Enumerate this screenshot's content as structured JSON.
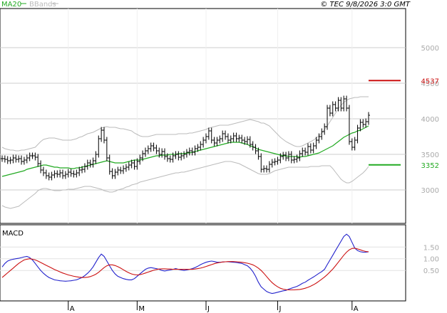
{
  "header": {
    "legend_ma": "MA20",
    "legend_bb": "BBands",
    "copyright": "© TEC 9/8/2026 3:0 GMT"
  },
  "colors": {
    "bars": "#000000",
    "ma": "#22aa22",
    "bbands": "#bbbbbb",
    "macd": "#2222cc",
    "signal": "#cc1111",
    "resistance": "#cc1111",
    "support": "#22aa22",
    "grid": "#cccccc"
  },
  "chart_data": [
    {
      "type": "ohlc",
      "title": "",
      "x_ticks": [
        "A",
        "M",
        "J",
        "J",
        "A"
      ],
      "y_ticks": [
        "3000",
        "3500",
        "4000",
        "4500",
        "5000"
      ],
      "ylim": [
        2530,
        5550
      ],
      "grid": true,
      "levels": [
        {
          "name": "resistance",
          "value": 4537,
          "label": "4537"
        },
        {
          "name": "support",
          "value": 3352,
          "label": "3352"
        }
      ],
      "closes": [
        3440,
        3430,
        3410,
        3420,
        3450,
        3430,
        3440,
        3400,
        3420,
        3450,
        3480,
        3480,
        3460,
        3370,
        3280,
        3240,
        3200,
        3180,
        3210,
        3230,
        3220,
        3240,
        3200,
        3220,
        3250,
        3230,
        3220,
        3240,
        3280,
        3290,
        3330,
        3380,
        3360,
        3410,
        3500,
        3720,
        3840,
        3700,
        3450,
        3260,
        3200,
        3250,
        3280,
        3270,
        3300,
        3320,
        3350,
        3380,
        3330,
        3400,
        3450,
        3510,
        3550,
        3580,
        3620,
        3590,
        3550,
        3500,
        3540,
        3470,
        3440,
        3430,
        3480,
        3500,
        3460,
        3480,
        3500,
        3530,
        3550,
        3530,
        3580,
        3600,
        3640,
        3700,
        3750,
        3830,
        3700,
        3660,
        3700,
        3720,
        3790,
        3750,
        3700,
        3720,
        3760,
        3720,
        3730,
        3700,
        3680,
        3710,
        3640,
        3600,
        3550,
        3470,
        3290,
        3300,
        3290,
        3360,
        3390,
        3400,
        3420,
        3470,
        3490,
        3450,
        3500,
        3420,
        3430,
        3450,
        3510,
        3550,
        3530,
        3610,
        3560,
        3620,
        3700,
        3750,
        3820,
        3890,
        4150,
        4080,
        4200,
        4150,
        4260,
        4150,
        4280,
        4150,
        3680,
        3600,
        3700,
        3870,
        3950,
        3920,
        3960,
        4050
      ],
      "bbands_upper": [
        3600,
        3580,
        3570,
        3560,
        3560,
        3550,
        3550,
        3560,
        3560,
        3570,
        3580,
        3590,
        3600,
        3640,
        3680,
        3710,
        3720,
        3730,
        3730,
        3730,
        3720,
        3710,
        3700,
        3700,
        3700,
        3700,
        3710,
        3720,
        3740,
        3750,
        3770,
        3790,
        3800,
        3810,
        3830,
        3850,
        3870,
        3880,
        3890,
        3880,
        3880,
        3880,
        3870,
        3860,
        3860,
        3850,
        3840,
        3830,
        3800,
        3780,
        3760,
        3750,
        3750,
        3750,
        3760,
        3770,
        3780,
        3780,
        3780,
        3780,
        3780,
        3780,
        3780,
        3780,
        3790,
        3790,
        3790,
        3790,
        3800,
        3800,
        3810,
        3820,
        3830,
        3840,
        3850,
        3870,
        3880,
        3890,
        3900,
        3910,
        3910,
        3910,
        3910,
        3920,
        3930,
        3940,
        3950,
        3960,
        3970,
        3980,
        3990,
        3980,
        3970,
        3960,
        3940,
        3940,
        3920,
        3900,
        3860,
        3820,
        3780,
        3740,
        3710,
        3680,
        3660,
        3640,
        3620,
        3610,
        3610,
        3620,
        3640,
        3660,
        3680,
        3700,
        3730,
        3760,
        3800,
        3850,
        3900,
        3960,
        4020,
        4080,
        4140,
        4190,
        4230,
        4260,
        4280,
        4290,
        4300,
        4300,
        4310,
        4310,
        4310,
        4310
      ],
      "bbands_lower": [
        2780,
        2760,
        2750,
        2740,
        2750,
        2760,
        2770,
        2800,
        2830,
        2860,
        2890,
        2920,
        2950,
        2990,
        3010,
        3020,
        3020,
        3010,
        3000,
        2990,
        2990,
        2990,
        3000,
        3000,
        3010,
        3010,
        3010,
        3020,
        3030,
        3040,
        3050,
        3050,
        3050,
        3040,
        3030,
        3020,
        3010,
        2990,
        2980,
        2970,
        2970,
        2980,
        3000,
        3010,
        3020,
        3040,
        3050,
        3070,
        3080,
        3090,
        3110,
        3120,
        3130,
        3140,
        3150,
        3160,
        3170,
        3180,
        3190,
        3200,
        3210,
        3220,
        3230,
        3240,
        3240,
        3250,
        3250,
        3260,
        3270,
        3280,
        3290,
        3300,
        3310,
        3320,
        3330,
        3340,
        3350,
        3360,
        3370,
        3380,
        3390,
        3400,
        3400,
        3400,
        3390,
        3380,
        3370,
        3350,
        3330,
        3310,
        3290,
        3270,
        3250,
        3230,
        3220,
        3220,
        3220,
        3230,
        3250,
        3270,
        3280,
        3290,
        3300,
        3310,
        3320,
        3320,
        3320,
        3320,
        3320,
        3320,
        3320,
        3320,
        3330,
        3330,
        3330,
        3330,
        3340,
        3340,
        3340,
        3340,
        3300,
        3250,
        3200,
        3150,
        3120,
        3100,
        3100,
        3120,
        3150,
        3180,
        3210,
        3240,
        3280,
        3330
      ],
      "ma20": [
        3190,
        3200,
        3210,
        3220,
        3230,
        3240,
        3250,
        3260,
        3270,
        3290,
        3300,
        3310,
        3320,
        3330,
        3340,
        3350,
        3350,
        3340,
        3330,
        3320,
        3320,
        3310,
        3310,
        3310,
        3310,
        3300,
        3300,
        3310,
        3310,
        3320,
        3330,
        3340,
        3350,
        3360,
        3370,
        3380,
        3390,
        3400,
        3410,
        3400,
        3390,
        3380,
        3380,
        3380,
        3380,
        3390,
        3400,
        3410,
        3420,
        3420,
        3420,
        3430,
        3440,
        3450,
        3460,
        3470,
        3480,
        3480,
        3490,
        3490,
        3490,
        3500,
        3500,
        3500,
        3510,
        3510,
        3510,
        3520,
        3520,
        3530,
        3540,
        3550,
        3560,
        3570,
        3580,
        3590,
        3600,
        3610,
        3620,
        3630,
        3640,
        3650,
        3660,
        3670,
        3670,
        3670,
        3670,
        3660,
        3650,
        3640,
        3620,
        3610,
        3590,
        3570,
        3560,
        3550,
        3540,
        3530,
        3520,
        3510,
        3500,
        3490,
        3480,
        3480,
        3470,
        3470,
        3470,
        3470,
        3460,
        3470,
        3470,
        3480,
        3490,
        3500,
        3510,
        3520,
        3540,
        3560,
        3580,
        3600,
        3620,
        3650,
        3680,
        3710,
        3740,
        3760,
        3780,
        3800,
        3810,
        3830,
        3840,
        3860,
        3880,
        3900
      ]
    },
    {
      "type": "line",
      "title": "MACD",
      "y_ticks": [
        "0.50",
        "1.00",
        "1.50"
      ],
      "ylim": [
        -0.8,
        2.45
      ],
      "grid": true,
      "macd": [
        0.65,
        0.8,
        0.9,
        0.95,
        0.98,
        1.0,
        1.02,
        1.05,
        1.08,
        1.1,
        1.05,
        0.95,
        0.8,
        0.65,
        0.5,
        0.38,
        0.28,
        0.2,
        0.15,
        0.1,
        0.08,
        0.06,
        0.05,
        0.04,
        0.05,
        0.06,
        0.08,
        0.1,
        0.15,
        0.2,
        0.28,
        0.38,
        0.5,
        0.65,
        0.85,
        1.05,
        1.2,
        1.1,
        0.9,
        0.7,
        0.5,
        0.35,
        0.25,
        0.2,
        0.15,
        0.12,
        0.1,
        0.1,
        0.15,
        0.25,
        0.35,
        0.45,
        0.55,
        0.6,
        0.62,
        0.6,
        0.58,
        0.55,
        0.5,
        0.48,
        0.5,
        0.52,
        0.55,
        0.58,
        0.55,
        0.52,
        0.5,
        0.52,
        0.55,
        0.58,
        0.62,
        0.68,
        0.75,
        0.8,
        0.85,
        0.88,
        0.9,
        0.88,
        0.85,
        0.85,
        0.86,
        0.87,
        0.87,
        0.86,
        0.85,
        0.84,
        0.82,
        0.8,
        0.75,
        0.7,
        0.6,
        0.45,
        0.25,
        0.0,
        -0.2,
        -0.3,
        -0.4,
        -0.45,
        -0.48,
        -0.46,
        -0.43,
        -0.4,
        -0.37,
        -0.35,
        -0.3,
        -0.26,
        -0.22,
        -0.18,
        -0.12,
        -0.05,
        0.0,
        0.08,
        0.15,
        0.22,
        0.3,
        0.38,
        0.45,
        0.55,
        0.75,
        0.95,
        1.15,
        1.35,
        1.55,
        1.75,
        1.95,
        2.05,
        1.95,
        1.7,
        1.45,
        1.35,
        1.3,
        1.28,
        1.28,
        1.3
      ],
      "signal": [
        0.2,
        0.3,
        0.4,
        0.5,
        0.6,
        0.7,
        0.8,
        0.88,
        0.95,
        0.98,
        1.0,
        0.98,
        0.95,
        0.9,
        0.84,
        0.78,
        0.72,
        0.66,
        0.6,
        0.54,
        0.49,
        0.44,
        0.39,
        0.35,
        0.31,
        0.28,
        0.25,
        0.23,
        0.21,
        0.2,
        0.2,
        0.21,
        0.24,
        0.28,
        0.34,
        0.42,
        0.52,
        0.62,
        0.7,
        0.74,
        0.74,
        0.71,
        0.66,
        0.6,
        0.53,
        0.46,
        0.4,
        0.35,
        0.32,
        0.31,
        0.32,
        0.35,
        0.39,
        0.43,
        0.47,
        0.51,
        0.54,
        0.56,
        0.57,
        0.57,
        0.56,
        0.56,
        0.55,
        0.55,
        0.55,
        0.55,
        0.55,
        0.55,
        0.55,
        0.55,
        0.56,
        0.58,
        0.6,
        0.63,
        0.67,
        0.71,
        0.75,
        0.79,
        0.82,
        0.84,
        0.86,
        0.87,
        0.88,
        0.88,
        0.88,
        0.87,
        0.86,
        0.85,
        0.83,
        0.81,
        0.78,
        0.74,
        0.68,
        0.6,
        0.5,
        0.38,
        0.24,
        0.1,
        -0.02,
        -0.12,
        -0.2,
        -0.26,
        -0.3,
        -0.32,
        -0.33,
        -0.33,
        -0.33,
        -0.32,
        -0.31,
        -0.29,
        -0.26,
        -0.22,
        -0.17,
        -0.11,
        -0.04,
        0.04,
        0.13,
        0.22,
        0.32,
        0.44,
        0.56,
        0.7,
        0.85,
        1.0,
        1.15,
        1.28,
        1.38,
        1.44,
        1.45,
        1.42,
        1.38,
        1.34,
        1.31,
        1.3
      ]
    }
  ]
}
